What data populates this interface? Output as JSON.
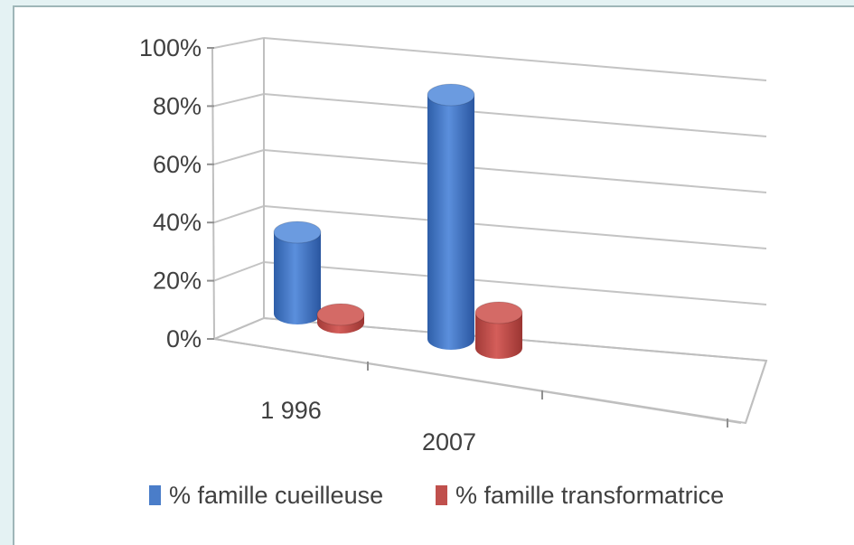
{
  "chart_data": {
    "type": "bar",
    "style": "3d-cylinder",
    "categories": [
      "1 996",
      "2007"
    ],
    "series": [
      {
        "name": "% famille cueilleuse",
        "values": [
          30,
          90
        ],
        "color": "#4a7dc9"
      },
      {
        "name": "% famille transformatrice",
        "values": [
          3,
          13
        ],
        "color": "#c0504d"
      }
    ],
    "y_ticks": [
      "0%",
      "20%",
      "40%",
      "60%",
      "80%",
      "100%"
    ],
    "ylim": [
      0,
      100
    ],
    "grid": true,
    "legend_position": "bottom",
    "title": "",
    "xlabel": "",
    "ylabel": ""
  }
}
